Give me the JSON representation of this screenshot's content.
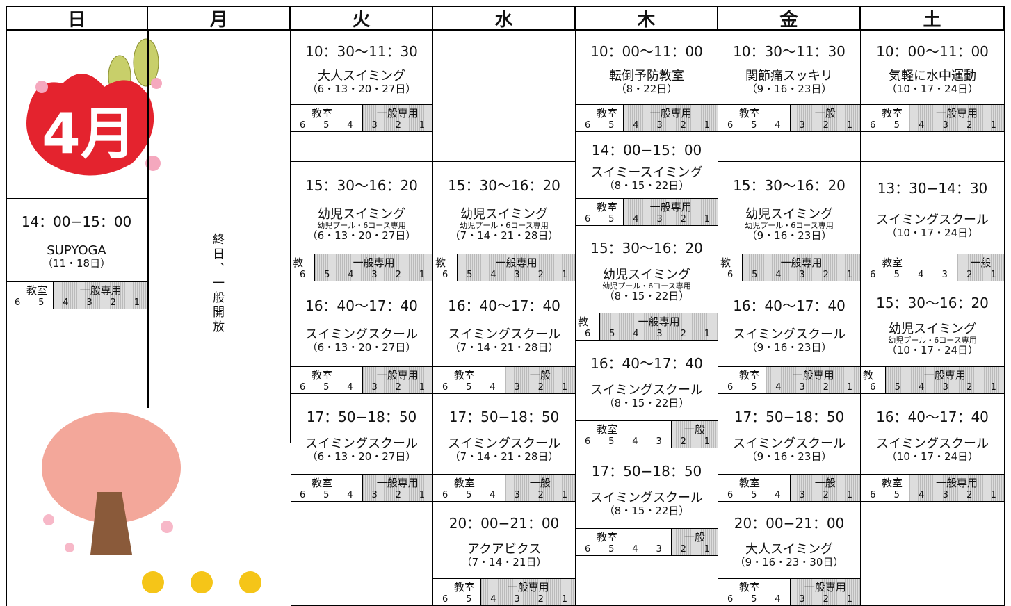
{
  "header": {
    "days": [
      "日",
      "月",
      "火",
      "水",
      "木",
      "金",
      "土"
    ]
  },
  "sunday": {
    "month_label": "4月",
    "session": {
      "time": "14：00−15：00",
      "name": "SUPYOGA",
      "dates": "（11・18日）",
      "lanes": {
        "class_label": "教室",
        "class_lanes": [
          6,
          5
        ],
        "general_label": "一般専用",
        "general_lanes": [
          4,
          3,
          2,
          1
        ]
      }
    }
  },
  "monday": {
    "note": "終日、一般開放"
  },
  "columns": [
    {
      "sessions": [
        {
          "time": "10：30〜11：30",
          "name": "大人スイミング",
          "dates": "（6・13・20・27日）",
          "lanes": {
            "class_label": "教室",
            "class_lanes": [
              6,
              5,
              4
            ],
            "general_label": "一般専用",
            "general_lanes": [
              3,
              2,
              1
            ]
          }
        },
        {
          "time": "15：30〜16：20",
          "name": "幼児スイミング",
          "note": "幼児プール・6コース専用",
          "dates": "（6・13・20・27日）",
          "lanes": {
            "class_label": "教",
            "class_lanes": [
              6
            ],
            "general_label": "一般専用",
            "general_lanes": [
              5,
              4,
              3,
              2,
              1
            ]
          }
        },
        {
          "time": "16：40〜17：40",
          "name": "スイミングスクール",
          "dates": "（6・13・20・27日）",
          "lanes": {
            "class_label": "教室",
            "class_lanes": [
              6,
              5,
              4
            ],
            "general_label": "一般専用",
            "general_lanes": [
              3,
              2,
              1
            ]
          }
        },
        {
          "time": "17：50−18：50",
          "name": "スイミングスクール",
          "dates": "（6・13・20・27日）",
          "lanes": {
            "class_label": "教室",
            "class_lanes": [
              6,
              5,
              4
            ],
            "general_label": "一般専用",
            "general_lanes": [
              3,
              2,
              1
            ]
          }
        }
      ]
    },
    {
      "sessions": [
        {
          "time": "15：30〜16：20",
          "name": "幼児スイミング",
          "note": "幼児プール・6コース専用",
          "dates": "（7・14・21・28日）",
          "lanes": {
            "class_label": "教",
            "class_lanes": [
              6
            ],
            "general_label": "一般専用",
            "general_lanes": [
              5,
              4,
              3,
              2,
              1
            ]
          }
        },
        {
          "time": "16：40〜17：40",
          "name": "スイミングスクール",
          "dates": "（7・14・21・28日）",
          "lanes": {
            "class_label": "教室",
            "class_lanes": [
              6,
              5,
              4
            ],
            "general_label": "一般",
            "general_lanes": [
              3,
              2,
              1
            ]
          }
        },
        {
          "time": "17：50−18：50",
          "name": "スイミングスクール",
          "dates": "（7・14・21・28日）",
          "lanes": {
            "class_label": "教室",
            "class_lanes": [
              6,
              5,
              4
            ],
            "general_label": "一般",
            "general_lanes": [
              3,
              2,
              1
            ]
          }
        },
        {
          "time": "20：00−21：00",
          "name": "アクアビクス",
          "dates": "（7・14・21日）",
          "lanes": {
            "class_label": "教室",
            "class_lanes": [
              6,
              5
            ],
            "general_label": "一般専用",
            "general_lanes": [
              4,
              3,
              2,
              1
            ]
          }
        }
      ]
    },
    {
      "sessions": [
        {
          "time": "10：00〜11：00",
          "name": "転倒予防教室",
          "dates": "（8・22日）",
          "lanes": {
            "class_label": "教室",
            "class_lanes": [
              6,
              5
            ],
            "general_label": "一般専用",
            "general_lanes": [
              4,
              3,
              2,
              1
            ]
          }
        },
        {
          "time": "14：00−15：00",
          "name": "スイミースイミング",
          "dates": "（8・15・22日）",
          "lanes": {
            "class_label": "教室",
            "class_lanes": [
              6,
              5
            ],
            "general_label": "一般専用",
            "general_lanes": [
              4,
              3,
              2,
              1
            ]
          }
        },
        {
          "time": "15：30〜16：20",
          "name": "幼児スイミング",
          "note": "幼児プール・6コース専用",
          "dates": "（8・15・22日）",
          "lanes": {
            "class_label": "教",
            "class_lanes": [
              6
            ],
            "general_label": "一般専用",
            "general_lanes": [
              5,
              4,
              3,
              2,
              1
            ]
          }
        },
        {
          "time": "16：40〜17：40",
          "name": "スイミングスクール",
          "dates": "（8・15・22日）",
          "lanes": {
            "class_label": "教室",
            "class_lanes": [
              6,
              5,
              4,
              3
            ],
            "general_label": "一般",
            "general_lanes": [
              2,
              1
            ]
          }
        },
        {
          "time": "17：50−18：50",
          "name": "スイミングスクール",
          "dates": "（8・15・22日）",
          "lanes": {
            "class_label": "教室",
            "class_lanes": [
              6,
              5,
              4,
              3
            ],
            "general_label": "一般",
            "general_lanes": [
              2,
              1
            ]
          }
        }
      ]
    },
    {
      "sessions": [
        {
          "time": "10：30〜11：30",
          "name": "関節痛スッキリ",
          "dates": "（9・16・23日）",
          "lanes": {
            "class_label": "教室",
            "class_lanes": [
              6,
              5,
              4
            ],
            "general_label": "一般",
            "general_lanes": [
              3,
              2,
              1
            ]
          }
        },
        {
          "time": "15：30〜16：20",
          "name": "幼児スイミング",
          "note": "幼児プール・6コース専用",
          "dates": "（9・16・23日）",
          "lanes": {
            "class_label": "教",
            "class_lanes": [
              6
            ],
            "general_label": "一般専用",
            "general_lanes": [
              5,
              4,
              3,
              2,
              1
            ]
          }
        },
        {
          "time": "16：40〜17：40",
          "name": "スイミングスクール",
          "dates": "（9・16・23日）",
          "lanes": {
            "class_label": "教室",
            "class_lanes": [
              6,
              5
            ],
            "general_label": "一般専用",
            "general_lanes": [
              4,
              3,
              2,
              1
            ]
          }
        },
        {
          "time": "17：50−18：50",
          "name": "スイミングスクール",
          "dates": "（9・16・23日）",
          "lanes": {
            "class_label": "教室",
            "class_lanes": [
              6,
              5,
              4
            ],
            "general_label": "一般",
            "general_lanes": [
              3,
              2,
              1
            ]
          }
        },
        {
          "time": "20：00−21：00",
          "name": "大人スイミング",
          "dates": "（9・16・23・30日）",
          "lanes": {
            "class_label": "教室",
            "class_lanes": [
              6,
              5,
              4
            ],
            "general_label": "一般専用",
            "general_lanes": [
              3,
              2,
              1
            ]
          }
        }
      ]
    },
    {
      "sessions": [
        {
          "time": "10：00〜11：00",
          "name": "気軽に水中運動",
          "dates": "（10・17・24日）",
          "lanes": {
            "class_label": "教室",
            "class_lanes": [
              6,
              5
            ],
            "general_label": "一般専用",
            "general_lanes": [
              4,
              3,
              2,
              1
            ]
          }
        },
        {
          "time": "13：30−14：30",
          "name": "スイミングスクール",
          "dates": "（10・17・24日）",
          "lanes": {
            "class_label": "教室",
            "class_lanes": [
              6,
              5,
              4,
              3
            ],
            "general_label": "一般",
            "general_lanes": [
              2,
              1
            ]
          }
        },
        {
          "time": "15：30〜16：20",
          "name": "幼児スイミング",
          "note": "幼児プール・6コース専用",
          "dates": "（10・17・24日）",
          "lanes": {
            "class_label": "教",
            "class_lanes": [
              6
            ],
            "general_label": "一般専用",
            "general_lanes": [
              5,
              4,
              3,
              2,
              1
            ]
          }
        },
        {
          "time": "16：40〜17：40",
          "name": "スイミングスクール",
          "dates": "（10・17・24日）",
          "lanes": {
            "class_label": "教室",
            "class_lanes": [
              6,
              5
            ],
            "general_label": "一般専用",
            "general_lanes": [
              4,
              3,
              2,
              1
            ]
          }
        }
      ]
    }
  ]
}
